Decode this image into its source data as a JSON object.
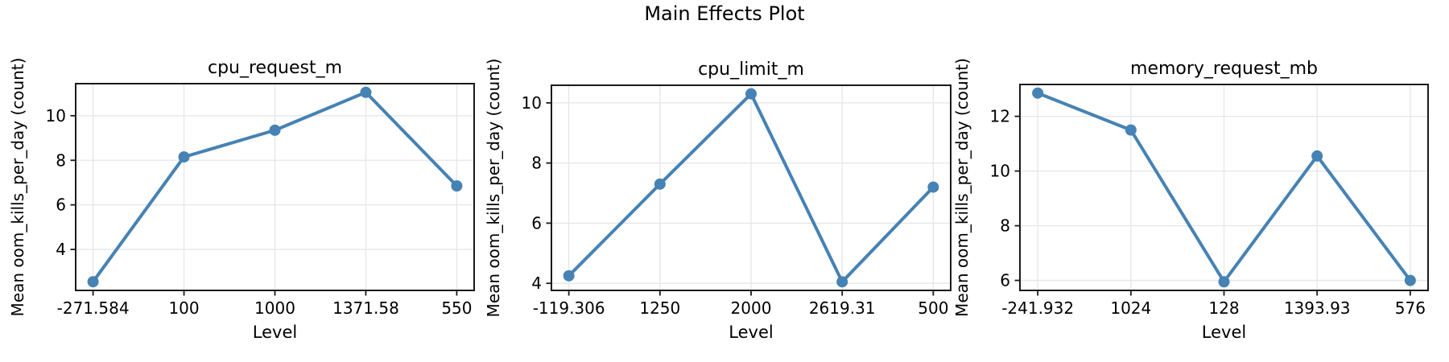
{
  "figure": {
    "title": "Main Effects Plot",
    "background": "#ffffff"
  },
  "style": {
    "line_color": "#4682b4",
    "grid_color": "#e6e6e6",
    "spine_color": "#1a1a1a",
    "text_color": "#000000"
  },
  "chart_data": [
    {
      "type": "line",
      "title": "cpu_request_m",
      "xlabel": "Level",
      "ylabel": "Mean oom_kills_per_day (count)",
      "categories": [
        "-271.584",
        "100",
        "1000",
        "1371.58",
        "550"
      ],
      "values": [
        2.55,
        8.15,
        9.35,
        11.05,
        6.85
      ],
      "yticks": [
        4,
        6,
        8,
        10
      ],
      "ylim": [
        2.125,
        11.475
      ],
      "grid": true,
      "legend": "none"
    },
    {
      "type": "line",
      "title": "cpu_limit_m",
      "xlabel": "Level",
      "ylabel": "Mean oom_kills_per_day (count)",
      "categories": [
        "-119.306",
        "1250",
        "2000",
        "2619.31",
        "500"
      ],
      "values": [
        4.25,
        7.3,
        10.3,
        4.05,
        7.2
      ],
      "yticks": [
        4,
        6,
        8,
        10
      ],
      "ylim": [
        3.7375,
        10.6125
      ],
      "grid": true,
      "legend": "none"
    },
    {
      "type": "line",
      "title": "memory_request_mb",
      "xlabel": "Level",
      "ylabel": "Mean oom_kills_per_day (count)",
      "categories": [
        "-241.932",
        "1024",
        "128",
        "1393.93",
        "576"
      ],
      "values": [
        12.85,
        11.5,
        5.95,
        10.55,
        6.0
      ],
      "yticks": [
        6,
        8,
        10,
        12
      ],
      "ylim": [
        5.605,
        13.195
      ],
      "grid": true,
      "legend": "none"
    }
  ]
}
